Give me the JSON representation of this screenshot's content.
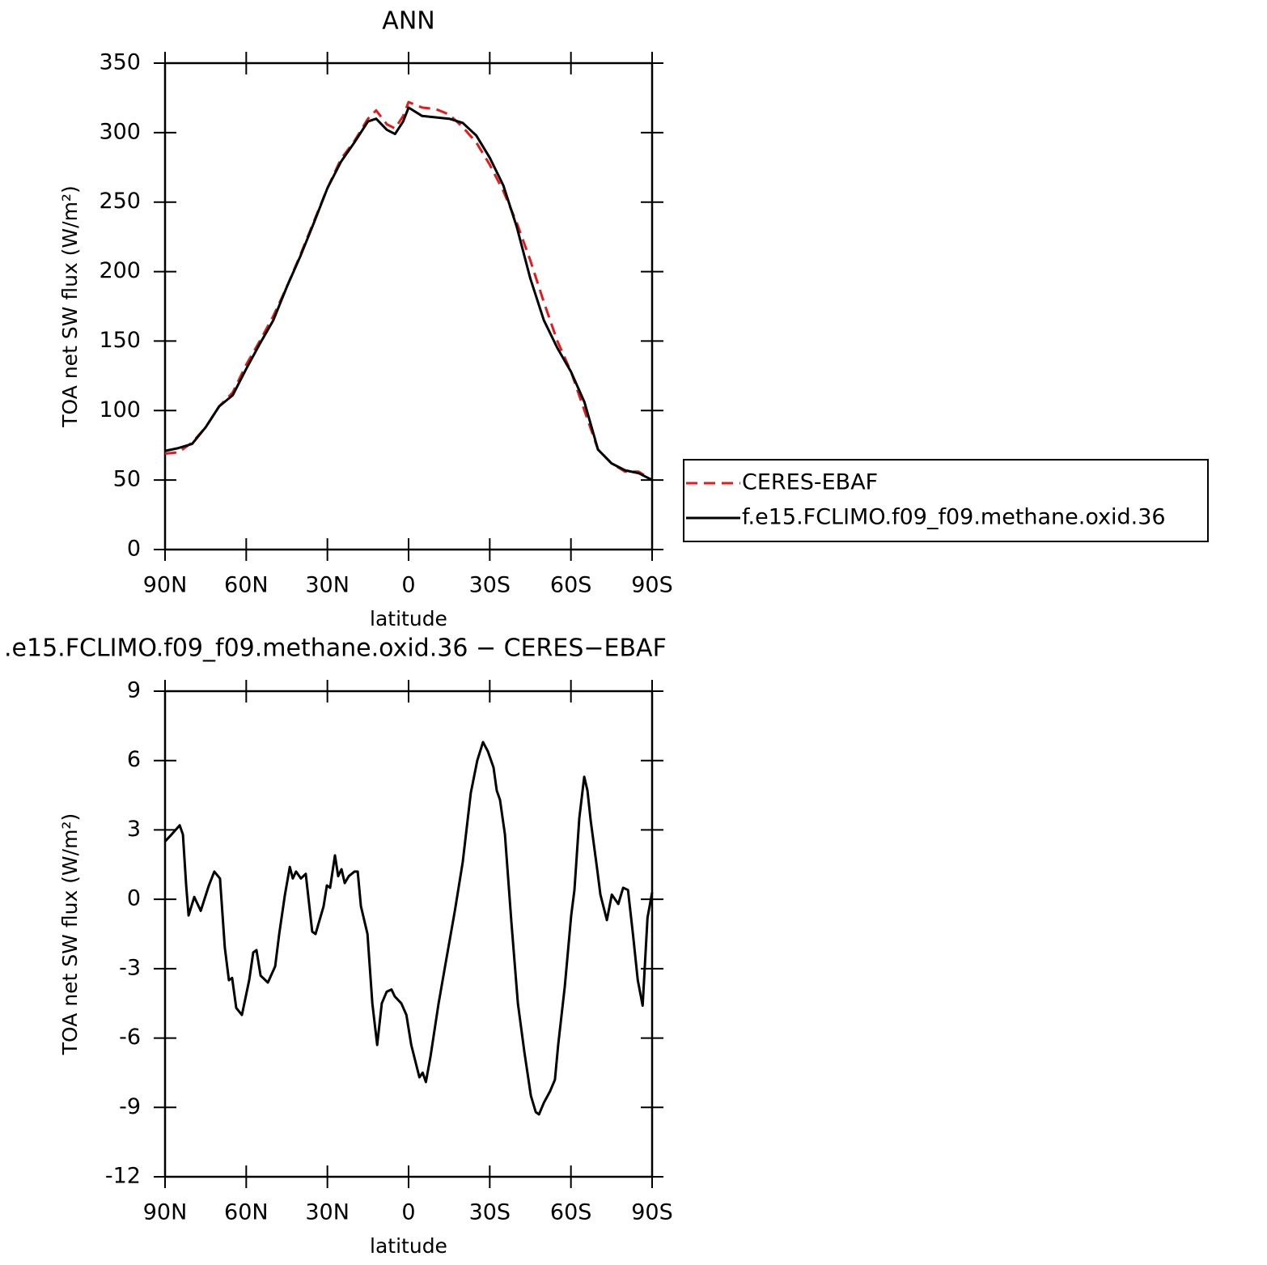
{
  "chart_data": [
    {
      "type": "line",
      "title": "ANN",
      "xlabel": "latitude",
      "ylabel": "TOA net SW flux (W/m²)",
      "x": [
        90,
        85,
        80,
        75,
        70,
        65,
        60,
        55,
        50,
        45,
        40,
        35,
        30,
        25,
        20,
        15,
        12,
        8,
        5,
        2,
        0,
        -5,
        -10,
        -15,
        -20,
        -25,
        -30,
        -35,
        -40,
        -45,
        -50,
        -55,
        -60,
        -65,
        -70,
        -75,
        -80,
        -85,
        -90
      ],
      "series": [
        {
          "name": "CERES-EBAF",
          "color": "#e41a1c",
          "linestyle": "dashed",
          "values": [
            69,
            70,
            77,
            88,
            103,
            113,
            133,
            150,
            168,
            189,
            212,
            236,
            260,
            281,
            294,
            310,
            316,
            306,
            303,
            312,
            322,
            318,
            317,
            313,
            304,
            293,
            277,
            258,
            235,
            208,
            178,
            150,
            128,
            100,
            72,
            62,
            56,
            56,
            50
          ]
        },
        {
          "name": "f.e15.FCLIMO.f09_f09.methane.oxid.36",
          "color": "#000000",
          "linestyle": "solid",
          "values": [
            71,
            73,
            76,
            88,
            103,
            111,
            130,
            148,
            165,
            189,
            211,
            235,
            260,
            279,
            293,
            308,
            310,
            302,
            299,
            308,
            318,
            312,
            311,
            310,
            307,
            298,
            282,
            262,
            232,
            195,
            165,
            145,
            128,
            106,
            72,
            62,
            57,
            55,
            50
          ]
        }
      ],
      "xlim": [
        90,
        -90
      ],
      "xticks": [
        {
          "value": 90,
          "label": "90N"
        },
        {
          "value": 60,
          "label": "60N"
        },
        {
          "value": 30,
          "label": "30N"
        },
        0,
        {
          "value": -30,
          "label": "30S"
        },
        {
          "value": -60,
          "label": "60S"
        },
        {
          "value": -90,
          "label": "90S"
        }
      ],
      "ylim": [
        0,
        350
      ],
      "yticks": [
        0,
        50,
        100,
        150,
        200,
        250,
        300,
        350
      ],
      "legend": "right"
    },
    {
      "type": "line",
      "title": ".e15.FCLIMO.f09_f09.methane.oxid.36 − CERES−EBAF",
      "xlabel": "latitude",
      "ylabel": "TOA net SW flux (W/m²)",
      "x": [
        90,
        87.6,
        84.6,
        83.4,
        82.2,
        81.3,
        79.2,
        76.8,
        73.8,
        71.8,
        69.7,
        67.9,
        66.4,
        65.2,
        63.7,
        61.6,
        58.9,
        57.4,
        56.2,
        54.7,
        52.0,
        49.3,
        47.8,
        45.7,
        43.9,
        42.8,
        41.6,
        39.8,
        38.0,
        35.6,
        34.4,
        31.4,
        30.2,
        29.0,
        27.2,
        26.0,
        24.8,
        23.6,
        22.1,
        20.0,
        18.8,
        17.6,
        15.2,
        13.4,
        11.6,
        9.9,
        8.1,
        6.3,
        5.1,
        2.7,
        0.8,
        -1.0,
        -4.0,
        -5.2,
        -6.4,
        -8.1,
        -11.1,
        -13.5,
        -17.1,
        -20.0,
        -23.0,
        -25.4,
        -27.5,
        -29.3,
        -31.4,
        -32.6,
        -33.8,
        -35.6,
        -38.0,
        -40.4,
        -42.8,
        -45.2,
        -47.0,
        -48.2,
        -50.0,
        -52.3,
        -54.1,
        -55.3,
        -57.7,
        -60.1,
        -61.3,
        -63.1,
        -64.9,
        -66.1,
        -67.3,
        -69.7,
        -70.9,
        -73.3,
        -75.1,
        -76.3,
        -77.5,
        -79.3,
        -81.1,
        -82.9,
        -84.7,
        -86.5,
        -88.3,
        -90
      ],
      "values": [
        2.5,
        2.8,
        3.2,
        2.8,
        0.6,
        -0.7,
        0.1,
        -0.5,
        0.6,
        1.2,
        0.9,
        -2.1,
        -3.5,
        -3.4,
        -4.7,
        -5.0,
        -3.5,
        -2.3,
        -2.2,
        -3.3,
        -3.6,
        -2.9,
        -1.5,
        0.2,
        1.4,
        0.9,
        1.2,
        0.9,
        1.1,
        -1.4,
        -1.5,
        -0.3,
        0.6,
        0.5,
        1.9,
        1.0,
        1.3,
        0.7,
        1.0,
        1.2,
        1.2,
        -0.3,
        -1.5,
        -4.5,
        -6.3,
        -4.5,
        -4.0,
        -3.9,
        -4.2,
        -4.5,
        -5.0,
        -6.3,
        -7.7,
        -7.5,
        -7.9,
        -6.8,
        -4.5,
        -2.9,
        -0.5,
        1.6,
        4.6,
        6.0,
        6.8,
        6.4,
        5.7,
        4.7,
        4.3,
        2.8,
        -1.0,
        -4.5,
        -6.6,
        -8.5,
        -9.2,
        -9.3,
        -8.8,
        -8.3,
        -7.8,
        -6.3,
        -3.8,
        -0.7,
        0.4,
        3.5,
        5.3,
        4.7,
        3.4,
        1.3,
        0.2,
        -0.9,
        0.2,
        0.0,
        -0.2,
        0.5,
        0.4,
        -1.5,
        -3.5,
        -4.6,
        -0.8,
        0.3
      ],
      "color": "#000000",
      "xlim": [
        90,
        -90
      ],
      "xticks": [
        {
          "value": 90,
          "label": "90N"
        },
        {
          "value": 60,
          "label": "60N"
        },
        {
          "value": 30,
          "label": "30N"
        },
        0,
        {
          "value": -30,
          "label": "30S"
        },
        {
          "value": -60,
          "label": "60S"
        },
        {
          "value": -90,
          "label": "90S"
        }
      ],
      "ylim": [
        -12,
        9
      ],
      "yticks": [
        -12,
        -9,
        -6,
        -3,
        0,
        3,
        6,
        9
      ]
    }
  ]
}
